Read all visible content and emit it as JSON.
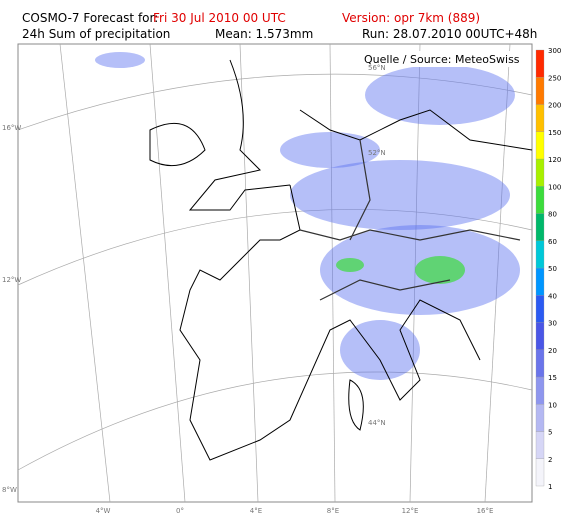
{
  "header": {
    "line1": {
      "label": "COSMO-7 Forecast for:",
      "date": "Fri 30 Jul 2010 00 UTC",
      "version": "Version: opr 7km (889)"
    },
    "line2": {
      "product": "24h Sum of precipitation",
      "mean": "Mean: 1.573mm",
      "run": "Run: 28.07.2010 00UTC+48h"
    }
  },
  "map": {
    "source": "Quelle / Source: MeteoSwiss",
    "lat_labels": [
      "56°N",
      "52°N",
      "44°N"
    ],
    "left_labels": [
      "16°W",
      "12°W",
      "8°W"
    ],
    "bottom_labels": [
      "4°W",
      "0°",
      "4°E",
      "8°E",
      "12°E",
      "16°E"
    ]
  },
  "colorbar": {
    "levels": [
      1,
      2,
      5,
      10,
      15,
      20,
      30,
      40,
      50,
      60,
      80,
      100,
      120,
      150,
      200,
      250,
      300
    ],
    "colors": [
      "#f4f4fa",
      "#d6d6f6",
      "#b4b8f2",
      "#8e96ee",
      "#6a74ea",
      "#4a56e6",
      "#2b5af2",
      "#0096ff",
      "#00c8d8",
      "#00b86a",
      "#3cdc3c",
      "#a8f000",
      "#ffff00",
      "#ffc000",
      "#ff7a00",
      "#ff2a00"
    ]
  }
}
